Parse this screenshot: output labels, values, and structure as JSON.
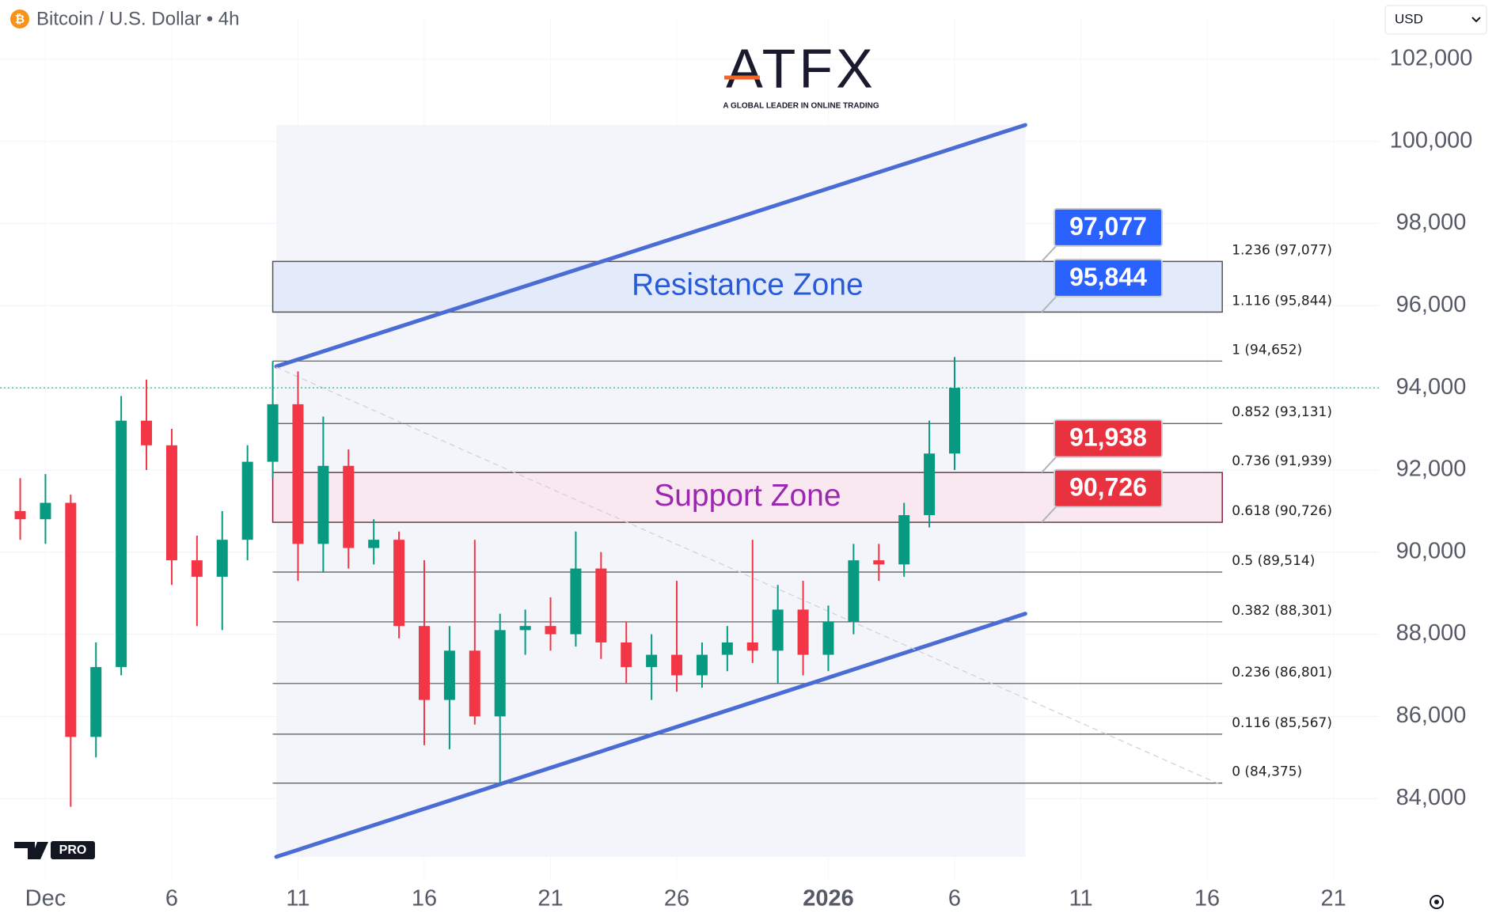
{
  "ui": {
    "currency": "USD",
    "logo": "ATFX",
    "tagline": "A GLOBAL LEADER IN ONLINE TRADING",
    "badge": "PRO"
  },
  "chart_data": {
    "type": "candlestick",
    "title": "Bitcoin / U.S. Dollar • 4h",
    "xlim": [
      -1.8,
      52.8
    ],
    "xticks": [
      {
        "value": 0,
        "label": "Dec"
      },
      {
        "value": 5,
        "label": "6"
      },
      {
        "value": 10,
        "label": "11"
      },
      {
        "value": 15,
        "label": "16"
      },
      {
        "value": 20,
        "label": "21"
      },
      {
        "value": 25,
        "label": "26"
      },
      {
        "value": 31,
        "label": "2026"
      },
      {
        "value": 36,
        "label": "6"
      },
      {
        "value": 41,
        "label": "11"
      },
      {
        "value": 46,
        "label": "16"
      },
      {
        "value": 51,
        "label": "21"
      }
    ],
    "ylim": [
      82000,
      103000
    ],
    "yticks": [
      {
        "value": 84000,
        "label": "84,000"
      },
      {
        "value": 86000,
        "label": "86,000"
      },
      {
        "value": 88000,
        "label": "88,000"
      },
      {
        "value": 90000,
        "label": "90,000"
      },
      {
        "value": 92000,
        "label": "92,000"
      },
      {
        "value": 94000,
        "label": "94,000"
      },
      {
        "value": 96000,
        "label": "96,000"
      },
      {
        "value": 98000,
        "label": "98,000"
      },
      {
        "value": 100000,
        "label": "100,000"
      },
      {
        "value": 102000,
        "label": "102,000"
      }
    ],
    "grid": true,
    "up_color": "#089981",
    "down_color": "#f23645",
    "candles": {
      "x": [
        -1,
        0,
        1,
        2,
        3,
        4,
        5,
        6,
        7,
        8,
        9,
        10,
        11,
        12,
        13,
        14,
        15,
        16,
        17,
        18,
        19,
        20,
        21,
        22,
        23,
        24,
        25,
        26,
        27,
        28,
        29,
        30,
        31,
        32,
        33,
        34,
        35,
        36
      ],
      "open": [
        91000,
        90800,
        91200,
        85500,
        87200,
        93200,
        92600,
        89800,
        89400,
        90300,
        92200,
        93600,
        90200,
        92100,
        90100,
        90300,
        88200,
        86400,
        87600,
        86000,
        88100,
        88200,
        88000,
        89600,
        87800,
        87200,
        87500,
        87000,
        87500,
        87800,
        87600,
        88600,
        87500,
        88300,
        89800,
        89700,
        90900,
        92400
      ],
      "high": [
        91800,
        91900,
        91400,
        87800,
        93800,
        94200,
        93000,
        90400,
        91000,
        92600,
        94650,
        94400,
        93300,
        92500,
        90800,
        90500,
        89800,
        88200,
        90300,
        88500,
        88600,
        88900,
        90500,
        90000,
        88300,
        88000,
        89300,
        87800,
        88200,
        90300,
        89200,
        89300,
        88700,
        90200,
        90200,
        91200,
        93200,
        94750
      ],
      "low": [
        90300,
        90200,
        83800,
        85000,
        87000,
        92000,
        89200,
        88200,
        88100,
        89800,
        91800,
        89300,
        89500,
        89600,
        89700,
        87900,
        85300,
        85200,
        85800,
        84375,
        87500,
        87600,
        87700,
        87400,
        86800,
        86400,
        86600,
        86700,
        87100,
        87300,
        86800,
        87000,
        87100,
        88000,
        89300,
        89400,
        90600,
        92000
      ],
      "close": [
        90800,
        91200,
        85500,
        87200,
        93200,
        92600,
        89800,
        89400,
        90300,
        92200,
        93600,
        90200,
        92100,
        90100,
        90300,
        88200,
        86400,
        87600,
        86000,
        88100,
        88200,
        88000,
        89600,
        87800,
        87200,
        87500,
        87000,
        87500,
        87800,
        87600,
        88600,
        87500,
        88300,
        89800,
        89700,
        90900,
        92400,
        94000
      ]
    },
    "fib_x": [
      9.0,
      46.6
    ],
    "fib_levels": [
      {
        "value": 97077,
        "label": "1.236 (97,077)"
      },
      {
        "value": 95844,
        "label": "1.116 (95,844)"
      },
      {
        "value": 94652,
        "label": "1 (94,652)"
      },
      {
        "value": 93131,
        "label": "0.852 (93,131)"
      },
      {
        "value": 91939,
        "label": "0.736 (91,939)"
      },
      {
        "value": 90726,
        "label": "0.618 (90,726)"
      },
      {
        "value": 89514,
        "label": "0.5 (89,514)"
      },
      {
        "value": 88301,
        "label": "0.382 (88,301)"
      },
      {
        "value": 86801,
        "label": "0.236 (86,801)"
      },
      {
        "value": 85567,
        "label": "0.116 (85,567)"
      },
      {
        "value": 84375,
        "label": "0 (84,375)"
      }
    ],
    "zones": [
      {
        "name": "Resistance Zone",
        "range": [
          95844,
          97077
        ],
        "fill": "#e3ebfa",
        "border": "#555555",
        "text_color": "#2a5bd7"
      },
      {
        "name": "Support Zone",
        "range": [
          90726,
          91938
        ],
        "fill": "#f9e8ef",
        "border": "#8e1b3f",
        "text_color": "#9c27b0"
      }
    ],
    "price_tags": [
      {
        "value": 97077,
        "label": "97,077",
        "color": "#2962ff"
      },
      {
        "value": 95844,
        "label": "95,844",
        "color": "#2962ff"
      },
      {
        "value": 91938,
        "label": "91,938",
        "color": "#e8323f"
      },
      {
        "value": 90726,
        "label": "90,726",
        "color": "#e8323f"
      }
    ],
    "trendlines": [
      {
        "x": [
          9.14,
          38.8
        ],
        "y": [
          94520,
          100400
        ],
        "color": "#4a6cd4"
      },
      {
        "x": [
          9.14,
          38.8
        ],
        "y": [
          82580,
          88500
        ],
        "color": "#4a6cd4"
      },
      {
        "x": [
          9.14,
          46.6
        ],
        "y": [
          94500,
          84320
        ],
        "color": "#cfcfd6",
        "dashed": true
      }
    ]
  }
}
